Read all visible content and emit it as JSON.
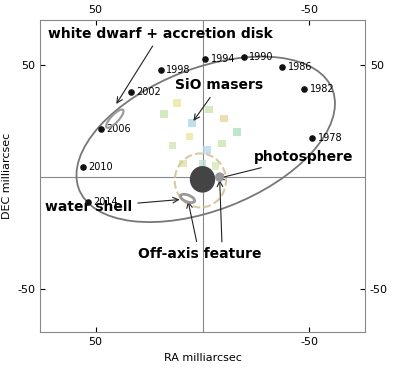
{
  "chart_data": {
    "type": "orbit",
    "xlabel": "RA milliarcsec",
    "ylabel": "DEC milliarcsec",
    "xlim": [
      76,
      -76
    ],
    "ylim": [
      -69,
      70
    ],
    "xticks": [
      50,
      -50
    ],
    "yticks": [
      50,
      -50
    ],
    "reference_lines": {
      "x": 0,
      "y": 0
    },
    "orbit": {
      "center": [
        -1.5,
        16.8
      ],
      "semi_major": 63.3,
      "semi_minor": 31.7,
      "angle": 160,
      "color": "#777777"
    },
    "epochs": {
      "years": [
        1978,
        1982,
        1986,
        1990,
        1994,
        1998,
        2002,
        2006,
        2010,
        2014
      ],
      "x": [
        -51.4,
        -47.7,
        -37.4,
        -19.2,
        -1.4,
        19.6,
        33.6,
        47.7,
        56.1,
        53.7
      ],
      "y": [
        17.4,
        39.3,
        49.1,
        53.6,
        52.7,
        47.8,
        37.9,
        21.4,
        4.5,
        -11.2
      ],
      "color": "#111111"
    },
    "white_dwarf": {
      "label": "white dwarf + accretion disk",
      "center": [
        41,
        26
      ],
      "width": 11,
      "height": 3.5,
      "angle": 135,
      "color": "#999999"
    },
    "sio_masers": {
      "label": "SiO masers",
      "x": [
        18,
        12,
        5,
        -3,
        -10,
        -16,
        14,
        6,
        -2,
        -9,
        9,
        0,
        -6
      ],
      "y": [
        28,
        33,
        24,
        30,
        26,
        20,
        14,
        18,
        12,
        15,
        6,
        6,
        5
      ],
      "colors": [
        "#c8e6b0",
        "#e8e8a0",
        "#b0d8e8",
        "#c8e6b0",
        "#e8d8a0",
        "#b0e0c0",
        "#d0e8b0",
        "#e8e8a0",
        "#b8d8f0",
        "#c8e6b0",
        "#e0e0a8",
        "#c0e0d0",
        "#d8e8b8"
      ]
    },
    "photosphere": {
      "label": "photosphere",
      "center": [
        0,
        -1
      ],
      "radius": 5.6,
      "color": "#444444"
    },
    "water_shell": {
      "label": "water shell",
      "center": [
        1,
        -1.5
      ],
      "radius": 12,
      "color": "#d8c9a0"
    },
    "off_axis_feature": {
      "label": "Off-axis feature",
      "ring": {
        "center": [
          7,
          -9.5
        ],
        "width": 7,
        "height": 3,
        "angle": 20
      },
      "dot": {
        "center": [
          -8,
          0
        ],
        "radius": 1.8
      },
      "color": "#999999"
    }
  }
}
